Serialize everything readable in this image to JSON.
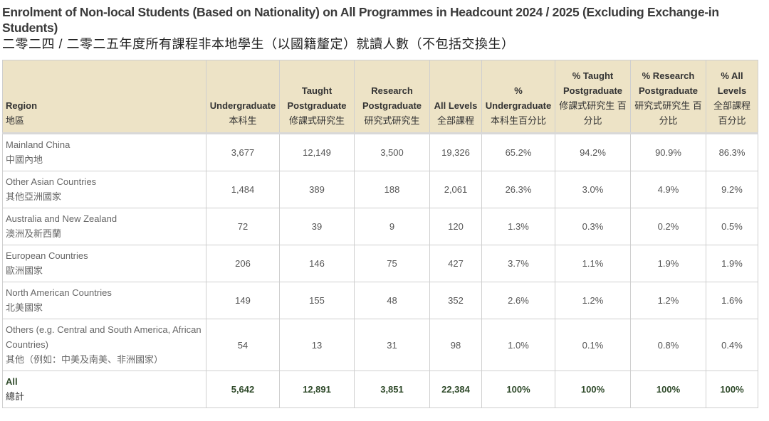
{
  "title": "Enrolment of Non-local Students (Based on Nationality) on All Programmes in Headcount 2024 / 2025 (Excluding Exchange-in Students)",
  "title_zh": "二零二四 / 二零二五年度所有課程非本地學生（以國籍釐定）就讀人數（不包括交換生）",
  "columns": [
    {
      "en": "Region",
      "zh": "地區"
    },
    {
      "en": "Undergraduate",
      "zh": "本科生"
    },
    {
      "en": "Taught Postgraduate",
      "zh": "修課式研究生"
    },
    {
      "en": "Research Postgraduate",
      "zh": "研究式研究生"
    },
    {
      "en": "All Levels",
      "zh": "全部課程"
    },
    {
      "en": "% Undergraduate",
      "zh": "本科生百分比"
    },
    {
      "en": "% Taught Postgraduate",
      "zh": "修課式研究生 百分比"
    },
    {
      "en": "% Research Postgraduate",
      "zh": "研究式研究生 百分比"
    },
    {
      "en": "% All Levels",
      "zh": "全部課程 百分比"
    }
  ],
  "rows": [
    {
      "en": "Mainland China",
      "zh": "中國內地",
      "values": [
        "3,677",
        "12,149",
        "3,500",
        "19,326",
        "65.2%",
        "94.2%",
        "90.9%",
        "86.3%"
      ]
    },
    {
      "en": "Other Asian Countries",
      "zh": "其他亞洲國家",
      "values": [
        "1,484",
        "389",
        "188",
        "2,061",
        "26.3%",
        "3.0%",
        "4.9%",
        "9.2%"
      ]
    },
    {
      "en": "Australia and New Zealand",
      "zh": "澳洲及新西蘭",
      "values": [
        "72",
        "39",
        "9",
        "120",
        "1.3%",
        "0.3%",
        "0.2%",
        "0.5%"
      ]
    },
    {
      "en": "European Countries",
      "zh": "歐洲國家",
      "values": [
        "206",
        "146",
        "75",
        "427",
        "3.7%",
        "1.1%",
        "1.9%",
        "1.9%"
      ]
    },
    {
      "en": "North American Countries",
      "zh": "北美國家",
      "values": [
        "149",
        "155",
        "48",
        "352",
        "2.6%",
        "1.2%",
        "1.2%",
        "1.6%"
      ]
    },
    {
      "en": "Others (e.g. Central and South America, African Countries)",
      "zh": "其他（例如：中美及南美、非洲國家）",
      "values": [
        "54",
        "13",
        "31",
        "98",
        "1.0%",
        "0.1%",
        "0.8%",
        "0.4%"
      ]
    }
  ],
  "total": {
    "en": "All",
    "zh": "總計",
    "values": [
      "5,642",
      "12,891",
      "3,851",
      "22,384",
      "100%",
      "100%",
      "100%",
      "100%"
    ]
  }
}
